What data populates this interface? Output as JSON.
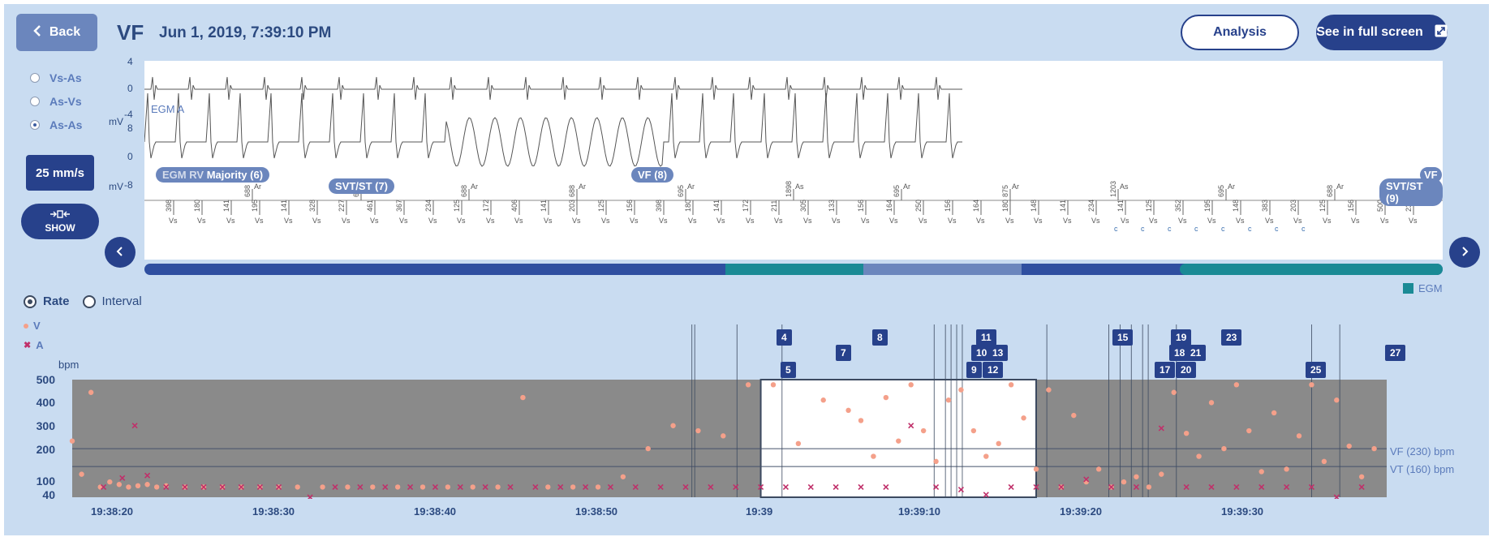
{
  "header": {
    "back_label": "Back",
    "episode_type": "VF",
    "datetime": "Jun 1, 2019, 7:39:10 PM",
    "analysis_label": "Analysis",
    "fullscreen_label": "See in full screen"
  },
  "sidebar": {
    "options": [
      {
        "label": "Vs-As",
        "selected": false
      },
      {
        "label": "As-Vs",
        "selected": false
      },
      {
        "label": "As-As",
        "selected": true
      }
    ],
    "speed_label": "25 mm/s",
    "show_label": "SHOW"
  },
  "egm": {
    "unit": "mV",
    "top_axis": [
      "4",
      "0",
      "-4"
    ],
    "bottom_axis": [
      "8",
      "0",
      "-8"
    ],
    "channel_a": "EGM A",
    "channel_v": "EGM RV",
    "events": [
      "Majority (6)",
      "SVT/ST (7)",
      "VF (8)",
      "VF",
      "SVT/ST (9)"
    ],
    "marker_values": [
      "398",
      "180",
      "141",
      "195",
      "141",
      "328",
      "227",
      "461",
      "367",
      "234",
      "125",
      "172",
      "406",
      "141",
      "203",
      "125",
      "156",
      "398",
      "180",
      "141",
      "172",
      "211",
      "305",
      "133",
      "156",
      "164",
      "250",
      "156",
      "164",
      "180",
      "148",
      "141",
      "234",
      "141",
      "125",
      "352",
      "195",
      "148",
      "383",
      "203",
      "125",
      "156",
      "500",
      "234"
    ],
    "marker_types": [
      "Vs",
      "Vs",
      "Vs",
      "Vs",
      "Vs",
      "Vs",
      "Vs",
      "Vs",
      "Vs",
      "Vs",
      "Vs",
      "Vs",
      "Vs",
      "Vs",
      "Vs",
      "Vs",
      "Vs",
      "Vs",
      "Vs",
      "Vs",
      "Vs",
      "Vs",
      "Vs",
      "Vs",
      "Vs",
      "Vs",
      "Vs",
      "Vs",
      "Vs",
      "Vs",
      "Vs",
      "Vs",
      "Vs",
      "Vs",
      "Vs",
      "Vs",
      "Vs",
      "Vs",
      "Vs",
      "Vs",
      "Vs",
      "Vs",
      "Vs",
      "Vs"
    ],
    "atrial_values": [
      "688",
      "695",
      "688",
      "688",
      "695",
      "1898",
      "695",
      "875",
      "1203",
      "695",
      "688"
    ],
    "atrial_types": [
      "Ar",
      "Ar",
      "Ar",
      "Ar",
      "Ar",
      "As",
      "Ar",
      "Ar",
      "As",
      "Ar",
      "Ar"
    ],
    "c_marks": [
      "c",
      "c",
      "c",
      "c",
      "c",
      "c",
      "c",
      "c"
    ],
    "legend_label": "EGM"
  },
  "rate_chart": {
    "mode_rate": "Rate",
    "mode_interval": "Interval",
    "legend_v": "V",
    "legend_a": "A",
    "y_unit": "bpm",
    "y_ticks": [
      "500",
      "400",
      "300",
      "200",
      "100",
      "40"
    ],
    "x_ticks": [
      "19:38:20",
      "19:38:30",
      "19:38:40",
      "19:38:50",
      "19:39",
      "19:39:10",
      "19:39:20",
      "19:39:30"
    ],
    "vf_zone": "VF (230) bpm",
    "vt_zone": "VT (160) bpm",
    "episode_tags": [
      "4",
      "5",
      "7",
      "8",
      "11",
      "10",
      "13",
      "9",
      "12",
      "15",
      "19",
      "18",
      "21",
      "17",
      "20",
      "23",
      "25",
      "27"
    ],
    "colors": {
      "v": "#f4a08a",
      "a": "#c0306a",
      "plot": "#8a8a8a",
      "accent": "#27418b"
    }
  },
  "chart_data": {
    "type": "scatter",
    "y_label": "bpm",
    "ylim": [
      40,
      500
    ],
    "zones": [
      {
        "name": "VF (230) bpm",
        "value": 230
      },
      {
        "name": "VT (160) bpm",
        "value": 160
      }
    ],
    "series": [
      {
        "name": "V",
        "x": [
          0,
          1.5,
          3,
          4.5,
          6,
          7.5,
          9,
          10.5,
          12,
          13.5,
          15,
          18,
          21,
          24,
          27,
          30,
          33,
          36,
          40,
          44,
          48,
          52,
          56,
          60,
          64,
          68,
          72,
          76,
          80,
          84,
          88,
          92,
          96,
          100,
          104,
          108,
          112,
          116,
          120,
          124,
          126,
          128,
          130,
          132,
          134,
          136,
          138,
          140,
          142,
          144,
          146,
          148,
          150,
          152,
          154,
          156,
          158,
          160,
          162,
          164,
          166,
          168,
          170,
          172,
          174,
          176,
          178,
          180,
          182,
          184,
          186,
          188,
          190,
          192,
          194,
          196,
          198,
          200,
          202,
          204,
          206,
          208
        ],
        "y": [
          260,
          130,
          450,
          80,
          100,
          90,
          80,
          85,
          90,
          80,
          85,
          80,
          80,
          80,
          80,
          80,
          80,
          80,
          80,
          80,
          80,
          80,
          80,
          80,
          80,
          80,
          430,
          80,
          80,
          80,
          120,
          230,
          320,
          300,
          280,
          480,
          480,
          250,
          420,
          380,
          340,
          200,
          430,
          260,
          480,
          300,
          180,
          420,
          460,
          300,
          200,
          250,
          480,
          350,
          150,
          460,
          80,
          360,
          100,
          150,
          80,
          100,
          120,
          80,
          130,
          450,
          290,
          200,
          410,
          230,
          480,
          300,
          140,
          370,
          150,
          280,
          480,
          180,
          420,
          240,
          120,
          230
        ]
      },
      {
        "name": "A",
        "x": [
          5,
          8,
          10,
          12,
          15,
          18,
          21,
          24,
          27,
          30,
          33,
          38,
          42,
          46,
          50,
          54,
          58,
          62,
          66,
          70,
          74,
          78,
          82,
          86,
          90,
          94,
          98,
          102,
          106,
          110,
          114,
          118,
          122,
          126,
          130,
          134,
          138,
          142,
          146,
          150,
          154,
          158,
          162,
          166,
          170,
          174,
          178,
          182,
          186,
          190,
          194,
          198,
          202,
          206
        ],
        "y": [
          80,
          115,
          320,
          125,
          80,
          80,
          80,
          80,
          80,
          80,
          80,
          40,
          80,
          80,
          80,
          80,
          80,
          80,
          80,
          80,
          80,
          80,
          80,
          80,
          80,
          80,
          80,
          80,
          80,
          80,
          80,
          80,
          80,
          80,
          80,
          320,
          80,
          70,
          50,
          80,
          80,
          80,
          110,
          80,
          80,
          310,
          80,
          80,
          80,
          80,
          80,
          80,
          40,
          80
        ]
      }
    ]
  }
}
